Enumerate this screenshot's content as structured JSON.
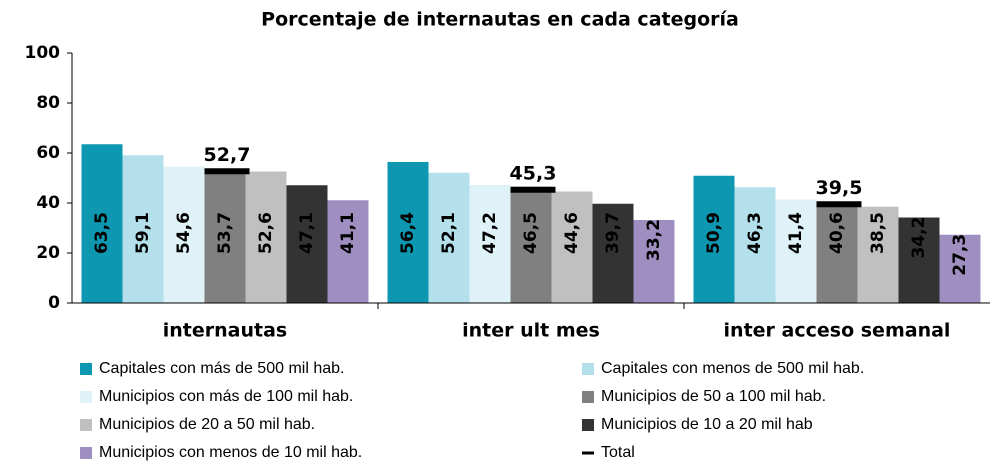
{
  "chart_data": {
    "type": "bar",
    "title": "Porcentaje de internautas en cada categoría",
    "categories": [
      "internautas",
      "inter ult mes",
      "inter acceso semanal"
    ],
    "ylim": [
      0,
      100
    ],
    "yticks": [
      0,
      20,
      40,
      60,
      80,
      100
    ],
    "series": [
      {
        "name": "Capitales con más de 500 mil hab.",
        "color": "#0e97b0",
        "label_color": "#000000",
        "values": [
          63.5,
          56.4,
          50.9
        ],
        "value_labels": [
          "63,5",
          "56,4",
          "50,9"
        ]
      },
      {
        "name": "Capitales con menos de 500 mil hab.",
        "color": "#b3e0ea",
        "label_color": "#000000",
        "values": [
          59.1,
          52.1,
          46.3
        ],
        "value_labels": [
          "59,1",
          "52,1",
          "46,3"
        ]
      },
      {
        "name": "Municipios con más de 100 mil hab.",
        "color": "#dff2f7",
        "label_color": "#000000",
        "values": [
          54.6,
          47.2,
          41.4
        ],
        "value_labels": [
          "54,6",
          "47,2",
          "41,4"
        ]
      },
      {
        "name": "Municipios de 50 a 100 mil hab.",
        "color": "#808080",
        "label_color": "#ffffff",
        "values": [
          53.7,
          46.5,
          40.6
        ],
        "value_labels": [
          "53,7",
          "46,5",
          "40,6"
        ]
      },
      {
        "name": "Municipios de 20 a 50 mil hab.",
        "color": "#c0c0c0",
        "label_color": "#ffffff",
        "values": [
          52.6,
          44.6,
          38.5
        ],
        "value_labels": [
          "52,6",
          "44,6",
          "38,5"
        ]
      },
      {
        "name": "Municipios de 10 a 20 mil hab",
        "color": "#333333",
        "label_color": "#ffffff",
        "values": [
          47.1,
          39.7,
          34.2
        ],
        "value_labels": [
          "47,1",
          "39,7",
          "34,2"
        ]
      },
      {
        "name": "Municipios con menos de 10 mil hab.",
        "color": "#9e8fc0",
        "label_color": "#000000",
        "values": [
          41.1,
          33.2,
          27.3
        ],
        "value_labels": [
          "41,1",
          "33,2",
          "27,3"
        ]
      }
    ],
    "total": {
      "name": "Total",
      "color": "#000000",
      "values": [
        52.7,
        45.3,
        39.5
      ],
      "value_labels": [
        "52,7",
        "45,3",
        "39,5"
      ]
    }
  }
}
